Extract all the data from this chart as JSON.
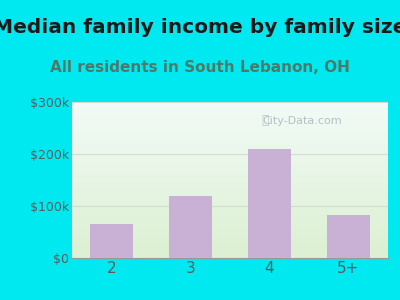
{
  "title": "Median family income by family size",
  "subtitle": "All residents in South Lebanon, OH",
  "categories": [
    "2",
    "3",
    "4",
    "5+"
  ],
  "values": [
    65000,
    120000,
    210000,
    82000
  ],
  "bar_color": "#c9b0d5",
  "ylim": [
    0,
    300000
  ],
  "ytick_vals": [
    0,
    100000,
    200000,
    300000
  ],
  "ytick_labels": [
    "$0",
    "$100k",
    "$200k",
    "$300k"
  ],
  "background_outer": "#00e8f0",
  "title_fontsize": 14.5,
  "title_color": "#1a1a1a",
  "subtitle_fontsize": 11,
  "subtitle_color": "#4a7a6a",
  "tick_color": "#5a5a5a",
  "tick_fontsize": 9,
  "xtick_fontsize": 11,
  "watermark": "City-Data.com",
  "watermark_color": "#b0b8c0",
  "gridline_color": "#d0ddd0",
  "plot_bg_top": "#f5faf8",
  "plot_bg_bottom": "#dff0d8"
}
